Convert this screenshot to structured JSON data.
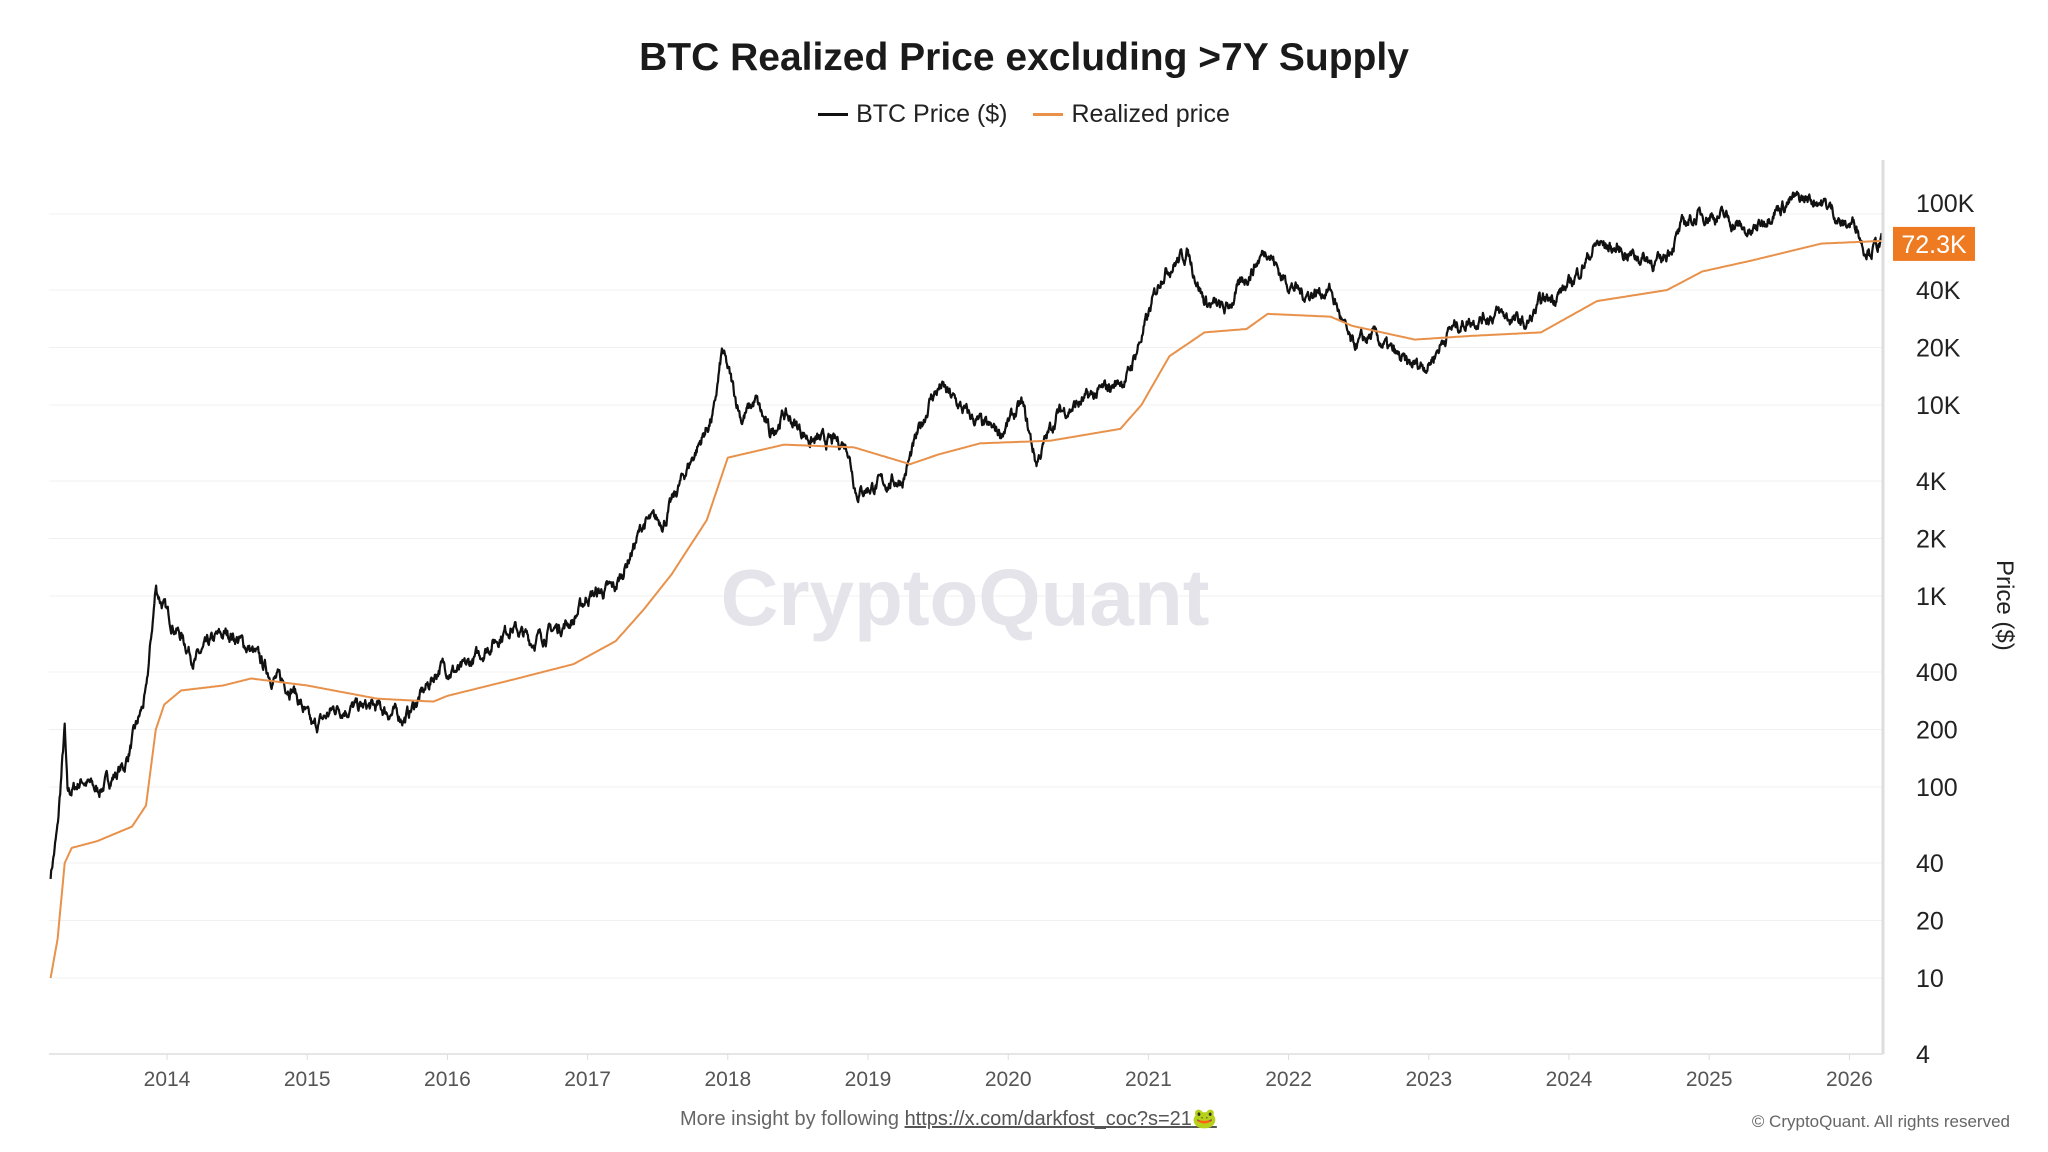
{
  "chart_data": {
    "type": "line",
    "title": "BTC Realized Price excluding >7Y Supply",
    "ylabel": "Price ($)",
    "yscale": "log",
    "ylim": [
      4,
      190000
    ],
    "xlim": [
      2013.17,
      2026.23
    ],
    "grid": true,
    "legend_position": "top",
    "y_ticks": [
      {
        "v": 4,
        "label": "4"
      },
      {
        "v": 10,
        "label": "10"
      },
      {
        "v": 20,
        "label": "20"
      },
      {
        "v": 40,
        "label": "40"
      },
      {
        "v": 100,
        "label": "100"
      },
      {
        "v": 200,
        "label": "200"
      },
      {
        "v": 400,
        "label": "400"
      },
      {
        "v": 1000,
        "label": "1K"
      },
      {
        "v": 2000,
        "label": "2K"
      },
      {
        "v": 4000,
        "label": "4K"
      },
      {
        "v": 10000,
        "label": "10K"
      },
      {
        "v": 20000,
        "label": "20K"
      },
      {
        "v": 40000,
        "label": "40K"
      },
      {
        "v": 100000,
        "label": "100K"
      }
    ],
    "x_ticks": [
      "2014",
      "2015",
      "2016",
      "2017",
      "2018",
      "2019",
      "2020",
      "2021",
      "2022",
      "2023",
      "2024",
      "2025",
      "2026"
    ],
    "current_value_label": "72.3K",
    "current_value": 72300,
    "series": [
      {
        "name": "BTC Price ($)",
        "color": "#111111",
        "points": [
          [
            2013.17,
            35
          ],
          [
            2013.22,
            60
          ],
          [
            2013.27,
            200
          ],
          [
            2013.29,
            90
          ],
          [
            2013.4,
            110
          ],
          [
            2013.5,
            95
          ],
          [
            2013.7,
            130
          ],
          [
            2013.85,
            300
          ],
          [
            2013.92,
            1100
          ],
          [
            2014.0,
            800
          ],
          [
            2014.1,
            620
          ],
          [
            2014.2,
            460
          ],
          [
            2014.35,
            600
          ],
          [
            2014.45,
            640
          ],
          [
            2014.6,
            520
          ],
          [
            2014.75,
            380
          ],
          [
            2014.9,
            330
          ],
          [
            2015.04,
            200
          ],
          [
            2015.2,
            260
          ],
          [
            2015.5,
            260
          ],
          [
            2015.7,
            230
          ],
          [
            2015.85,
            330
          ],
          [
            2015.95,
            430
          ],
          [
            2016.1,
            400
          ],
          [
            2016.45,
            700
          ],
          [
            2016.6,
            580
          ],
          [
            2016.9,
            750
          ],
          [
            2017.0,
            1000
          ],
          [
            2017.2,
            1100
          ],
          [
            2017.4,
            2400
          ],
          [
            2017.55,
            2500
          ],
          [
            2017.7,
            4500
          ],
          [
            2017.9,
            9000
          ],
          [
            2017.96,
            19000
          ],
          [
            2018.1,
            8500
          ],
          [
            2018.2,
            10500
          ],
          [
            2018.3,
            7000
          ],
          [
            2018.4,
            9000
          ],
          [
            2018.6,
            6500
          ],
          [
            2018.85,
            6300
          ],
          [
            2018.92,
            3500
          ],
          [
            2019.0,
            3700
          ],
          [
            2019.25,
            4100
          ],
          [
            2019.45,
            11000
          ],
          [
            2019.52,
            12500
          ],
          [
            2019.7,
            9000
          ],
          [
            2019.85,
            7500
          ],
          [
            2019.95,
            7200
          ],
          [
            2020.1,
            10000
          ],
          [
            2020.2,
            5000
          ],
          [
            2020.35,
            9000
          ],
          [
            2020.6,
            11000
          ],
          [
            2020.85,
            14000
          ],
          [
            2021.0,
            29000
          ],
          [
            2021.1,
            50000
          ],
          [
            2021.28,
            63000
          ],
          [
            2021.4,
            35000
          ],
          [
            2021.55,
            31000
          ],
          [
            2021.7,
            47000
          ],
          [
            2021.85,
            67000
          ],
          [
            2021.95,
            47000
          ],
          [
            2022.1,
            38000
          ],
          [
            2022.3,
            40000
          ],
          [
            2022.45,
            20000
          ],
          [
            2022.6,
            23000
          ],
          [
            2022.85,
            16000
          ],
          [
            2023.0,
            16500
          ],
          [
            2023.15,
            25000
          ],
          [
            2023.3,
            28000
          ],
          [
            2023.5,
            30000
          ],
          [
            2023.7,
            26000
          ],
          [
            2023.8,
            34000
          ],
          [
            2024.0,
            42000
          ],
          [
            2024.2,
            70000
          ],
          [
            2024.5,
            60000
          ],
          [
            2024.65,
            55000
          ],
          [
            2024.83,
            90000
          ],
          [
            2024.96,
            100000
          ],
          [
            2025.1,
            97000
          ],
          [
            2025.3,
            78000
          ],
          [
            2025.45,
            105000
          ],
          [
            2025.6,
            118000
          ],
          [
            2025.77,
            120000
          ],
          [
            2025.88,
            105000
          ],
          [
            2025.95,
            87000
          ],
          [
            2026.05,
            90000
          ],
          [
            2026.1,
            68000
          ],
          [
            2026.15,
            66000
          ],
          [
            2026.23,
            70000
          ]
        ]
      },
      {
        "name": "Realized price",
        "color": "#e8914a",
        "points": [
          [
            2013.17,
            10
          ],
          [
            2013.22,
            16
          ],
          [
            2013.27,
            40
          ],
          [
            2013.32,
            48
          ],
          [
            2013.5,
            52
          ],
          [
            2013.75,
            62
          ],
          [
            2013.85,
            80
          ],
          [
            2013.92,
            200
          ],
          [
            2013.98,
            270
          ],
          [
            2014.1,
            320
          ],
          [
            2014.4,
            340
          ],
          [
            2014.6,
            370
          ],
          [
            2015.0,
            340
          ],
          [
            2015.5,
            290
          ],
          [
            2015.9,
            280
          ],
          [
            2016.0,
            300
          ],
          [
            2016.5,
            370
          ],
          [
            2016.9,
            440
          ],
          [
            2017.2,
            580
          ],
          [
            2017.4,
            850
          ],
          [
            2017.6,
            1300
          ],
          [
            2017.85,
            2500
          ],
          [
            2018.0,
            5300
          ],
          [
            2018.4,
            6200
          ],
          [
            2018.9,
            6000
          ],
          [
            2019.3,
            4900
          ],
          [
            2019.5,
            5500
          ],
          [
            2019.8,
            6300
          ],
          [
            2020.3,
            6500
          ],
          [
            2020.8,
            7500
          ],
          [
            2020.95,
            10000
          ],
          [
            2021.15,
            18000
          ],
          [
            2021.4,
            24000
          ],
          [
            2021.7,
            25000
          ],
          [
            2021.85,
            30000
          ],
          [
            2022.3,
            29000
          ],
          [
            2022.45,
            26000
          ],
          [
            2022.9,
            22000
          ],
          [
            2023.3,
            23000
          ],
          [
            2023.8,
            24000
          ],
          [
            2024.2,
            35000
          ],
          [
            2024.7,
            40000
          ],
          [
            2024.95,
            50000
          ],
          [
            2025.3,
            57000
          ],
          [
            2025.8,
            70000
          ],
          [
            2026.23,
            72300
          ]
        ]
      }
    ]
  },
  "watermark": "CryptoQuant",
  "footer": {
    "prefix": "More insight by following",
    "link": "https://x.com/darkfost_coc?s=21",
    "emoji": "🐸"
  },
  "copyright": "© CryptoQuant. All rights reserved",
  "accent_color": "#ee7b22"
}
